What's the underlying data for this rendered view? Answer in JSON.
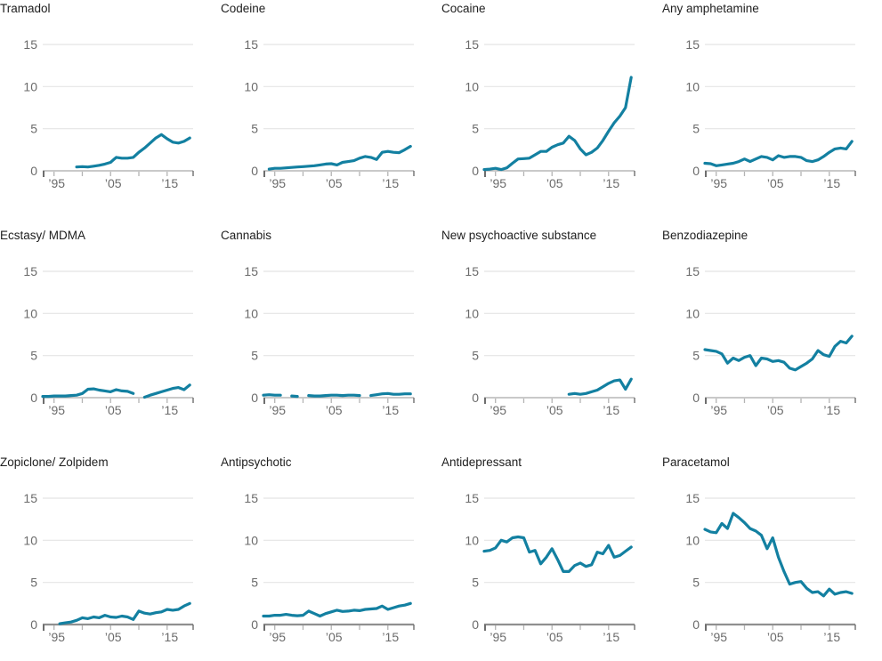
{
  "style": {
    "line_color": "#1380A1",
    "grid_color": "#e4e4e4",
    "axis_color": "#a9a9a9",
    "axis_color_bottom_row": "#8f8f8f",
    "tick_color": "#b4b4b4",
    "end_tick_color": "#6e6e6e",
    "label_color": "#6b6b6b",
    "title_color": "#202020",
    "background": "#ffffff"
  },
  "axes": {
    "x_domain": [
      1993,
      2019.6
    ],
    "x_tick_years": [
      1995,
      2000,
      2005,
      2010,
      2015
    ],
    "x_tick_labels": [
      {
        "year": 1995,
        "text": "’95"
      },
      {
        "year": 2005,
        "text": "’05"
      },
      {
        "year": 2015,
        "text": "’15"
      }
    ],
    "y_ticks": [
      0,
      5,
      10,
      15
    ],
    "ylim": [
      0,
      15
    ],
    "grid": true,
    "legend": "none"
  },
  "chart_data": [
    {
      "type": "line",
      "title": "Tramadol",
      "x_start": 1999,
      "x_step": 1,
      "ylim": [
        0,
        15
      ],
      "y_gridlines": [
        5,
        10,
        15
      ],
      "x_tick_labels": [
        "’95",
        "’05",
        "’15"
      ],
      "values": [
        0.45,
        0.5,
        0.45,
        0.55,
        0.65,
        0.8,
        1.0,
        1.6,
        1.5,
        1.5,
        1.6,
        2.2,
        2.7,
        3.3,
        3.9,
        4.3,
        3.8,
        3.4,
        3.3,
        3.5,
        3.9
      ]
    },
    {
      "type": "line",
      "title": "Codeine",
      "x_start": 1994,
      "x_step": 1,
      "ylim": [
        0,
        15
      ],
      "y_gridlines": [
        5,
        10,
        15
      ],
      "x_tick_labels": [
        "’95",
        "’05",
        "’15"
      ],
      "values": [
        0.2,
        0.3,
        0.3,
        0.35,
        0.4,
        0.45,
        0.5,
        0.55,
        0.6,
        0.7,
        0.8,
        0.85,
        0.7,
        1.0,
        1.1,
        1.2,
        1.5,
        1.7,
        1.6,
        1.35,
        2.2,
        2.3,
        2.2,
        2.15,
        2.5,
        2.9
      ]
    },
    {
      "type": "line",
      "title": "Cocaine",
      "x_start": 1993,
      "x_step": 1,
      "ylim": [
        0,
        15
      ],
      "y_gridlines": [
        5,
        10,
        15
      ],
      "x_tick_labels": [
        "’95",
        "’05",
        "’15"
      ],
      "values": [
        0.15,
        0.2,
        0.3,
        0.15,
        0.35,
        0.9,
        1.4,
        1.45,
        1.5,
        1.9,
        2.3,
        2.3,
        2.8,
        3.1,
        3.3,
        4.1,
        3.6,
        2.6,
        1.9,
        2.2,
        2.7,
        3.6,
        4.7,
        5.7,
        6.5,
        7.5,
        11.1
      ]
    },
    {
      "type": "line",
      "title": "Any amphetamine",
      "x_start": 1993,
      "x_step": 1,
      "ylim": [
        0,
        15
      ],
      "y_gridlines": [
        5,
        10,
        15
      ],
      "x_tick_labels": [
        "’95",
        "’05",
        "’15"
      ],
      "values": [
        0.9,
        0.85,
        0.6,
        0.7,
        0.8,
        0.9,
        1.1,
        1.4,
        1.1,
        1.4,
        1.7,
        1.6,
        1.3,
        1.8,
        1.6,
        1.7,
        1.7,
        1.6,
        1.2,
        1.1,
        1.3,
        1.7,
        2.2,
        2.6,
        2.7,
        2.6,
        3.5
      ]
    },
    {
      "type": "line",
      "title": "Ecstasy/ MDMA",
      "x_start": 1993,
      "x_step": 1,
      "ylim": [
        0,
        15
      ],
      "y_gridlines": [
        5,
        10,
        15
      ],
      "x_tick_labels": [
        "’95",
        "’05",
        "’15"
      ],
      "values": [
        0.15,
        0.15,
        0.2,
        0.2,
        0.2,
        0.25,
        0.3,
        0.5,
        1.0,
        1.05,
        0.9,
        0.8,
        0.7,
        0.95,
        0.8,
        0.75,
        0.5,
        null,
        0.05,
        0.3,
        0.5,
        0.7,
        0.9,
        1.1,
        1.2,
        0.95,
        1.5
      ]
    },
    {
      "type": "line",
      "title": "Cannabis",
      "x_start": 1993,
      "x_step": 1,
      "ylim": [
        0,
        15
      ],
      "y_gridlines": [
        5,
        10,
        15
      ],
      "x_tick_labels": [
        "’95",
        "’05",
        "’15"
      ],
      "values": [
        0.3,
        0.35,
        0.3,
        0.3,
        null,
        0.2,
        0.15,
        null,
        0.25,
        0.2,
        0.2,
        0.25,
        0.3,
        0.3,
        0.25,
        0.3,
        0.3,
        0.25,
        null,
        0.25,
        0.35,
        0.45,
        0.5,
        0.4,
        0.4,
        0.45,
        0.45
      ]
    },
    {
      "type": "line",
      "title": "New psychoactive substance",
      "x_start": 2008,
      "x_step": 1,
      "ylim": [
        0,
        15
      ],
      "y_gridlines": [
        5,
        10,
        15
      ],
      "x_tick_labels": [
        "’95",
        "’05",
        "’15"
      ],
      "values": [
        0.4,
        0.5,
        0.4,
        0.5,
        0.7,
        0.9,
        1.3,
        1.7,
        2.0,
        2.1,
        1.0,
        2.2
      ]
    },
    {
      "type": "line",
      "title": "Benzodiazepine",
      "x_start": 1993,
      "x_step": 1,
      "ylim": [
        0,
        15
      ],
      "y_gridlines": [
        5,
        10,
        15
      ],
      "x_tick_labels": [
        "’95",
        "’05",
        "’15"
      ],
      "values": [
        5.7,
        5.6,
        5.5,
        5.2,
        4.1,
        4.7,
        4.4,
        4.8,
        5.0,
        3.8,
        4.7,
        4.6,
        4.3,
        4.4,
        4.2,
        3.5,
        3.3,
        3.7,
        4.1,
        4.6,
        5.6,
        5.1,
        4.9,
        6.1,
        6.7,
        6.5,
        7.3
      ]
    },
    {
      "type": "line",
      "title": "Zopiclone/ Zolpidem",
      "x_start": 1996,
      "x_step": 1,
      "ylim": [
        0,
        15
      ],
      "y_gridlines": [
        5,
        10,
        15
      ],
      "x_tick_labels": [
        "’95",
        "’05",
        "’15"
      ],
      "values": [
        0.1,
        0.2,
        0.3,
        0.5,
        0.8,
        0.7,
        0.9,
        0.8,
        1.1,
        0.9,
        0.85,
        1.0,
        0.9,
        0.6,
        1.6,
        1.35,
        1.25,
        1.4,
        1.5,
        1.8,
        1.7,
        1.8,
        2.2,
        2.5
      ]
    },
    {
      "type": "line",
      "title": "Antipsychotic",
      "x_start": 1993,
      "x_step": 1,
      "ylim": [
        0,
        15
      ],
      "y_gridlines": [
        5,
        10,
        15
      ],
      "x_tick_labels": [
        "’95",
        "’05",
        "’15"
      ],
      "values": [
        1.0,
        1.0,
        1.1,
        1.1,
        1.2,
        1.1,
        1.05,
        1.1,
        1.6,
        1.3,
        1.0,
        1.3,
        1.5,
        1.7,
        1.55,
        1.6,
        1.7,
        1.65,
        1.8,
        1.85,
        1.9,
        2.2,
        1.8,
        2.0,
        2.2,
        2.3,
        2.5
      ]
    },
    {
      "type": "line",
      "title": "Antidepressant",
      "x_start": 1993,
      "x_step": 1,
      "ylim": [
        0,
        15
      ],
      "y_gridlines": [
        5,
        10,
        15
      ],
      "x_tick_labels": [
        "’95",
        "’05",
        "’15"
      ],
      "values": [
        8.7,
        8.8,
        9.1,
        10.0,
        9.8,
        10.3,
        10.4,
        10.3,
        8.6,
        8.8,
        7.2,
        8.0,
        9.0,
        7.7,
        6.3,
        6.3,
        7.0,
        7.3,
        6.9,
        7.1,
        8.6,
        8.4,
        9.4,
        8.0,
        8.2,
        8.7,
        9.2
      ]
    },
    {
      "type": "line",
      "title": "Paracetamol",
      "x_start": 1993,
      "x_step": 1,
      "ylim": [
        0,
        15
      ],
      "y_gridlines": [
        5,
        10,
        15
      ],
      "x_tick_labels": [
        "’95",
        "’05",
        "’15"
      ],
      "values": [
        11.3,
        11.0,
        10.9,
        12.0,
        11.4,
        13.2,
        12.7,
        12.1,
        11.4,
        11.1,
        10.6,
        9.0,
        10.3,
        8.0,
        6.3,
        4.8,
        5.0,
        5.1,
        4.3,
        3.8,
        3.9,
        3.4,
        4.2,
        3.6,
        3.8,
        3.9,
        3.7
      ]
    }
  ]
}
